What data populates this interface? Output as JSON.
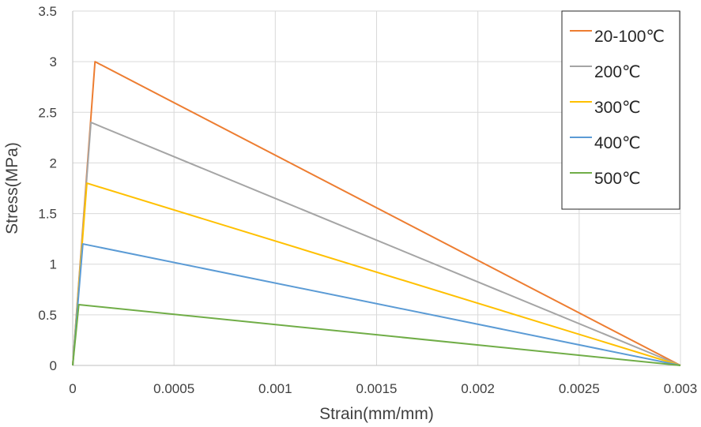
{
  "chart_data": {
    "type": "line",
    "title": "",
    "xlabel": "Strain(mm/mm)",
    "ylabel": "Stress(MPa)",
    "xlim": [
      0,
      0.003
    ],
    "ylim": [
      0,
      3.5
    ],
    "x_ticks": [
      "0",
      "0.0005",
      "0.001",
      "0.0015",
      "0.002",
      "0.0025",
      "0.003"
    ],
    "y_ticks": [
      "0",
      "0.5",
      "1",
      "1.5",
      "2",
      "2.5",
      "3",
      "3.5"
    ],
    "x_tick_values": [
      0,
      0.0005,
      0.001,
      0.0015,
      0.002,
      0.0025,
      0.003
    ],
    "y_tick_values": [
      0,
      0.5,
      1,
      1.5,
      2,
      2.5,
      3,
      3.5
    ],
    "grid": true,
    "legend_position": "top-right",
    "series": [
      {
        "name": "20-100℃",
        "color": "#ED7D31",
        "x": [
          0,
          0.00011,
          0.003
        ],
        "y": [
          0,
          3.0,
          0
        ]
      },
      {
        "name": "200℃",
        "color": "#A5A5A5",
        "x": [
          0,
          9e-05,
          0.003
        ],
        "y": [
          0,
          2.4,
          0
        ]
      },
      {
        "name": "300℃",
        "color": "#FFC000",
        "x": [
          0,
          7e-05,
          0.003
        ],
        "y": [
          0,
          1.8,
          0
        ]
      },
      {
        "name": "400℃",
        "color": "#5B9BD5",
        "x": [
          0,
          5e-05,
          0.003
        ],
        "y": [
          0,
          1.2,
          0
        ]
      },
      {
        "name": "500℃",
        "color": "#70AD47",
        "x": [
          0,
          3e-05,
          0.003
        ],
        "y": [
          0,
          0.6,
          0
        ]
      }
    ]
  }
}
